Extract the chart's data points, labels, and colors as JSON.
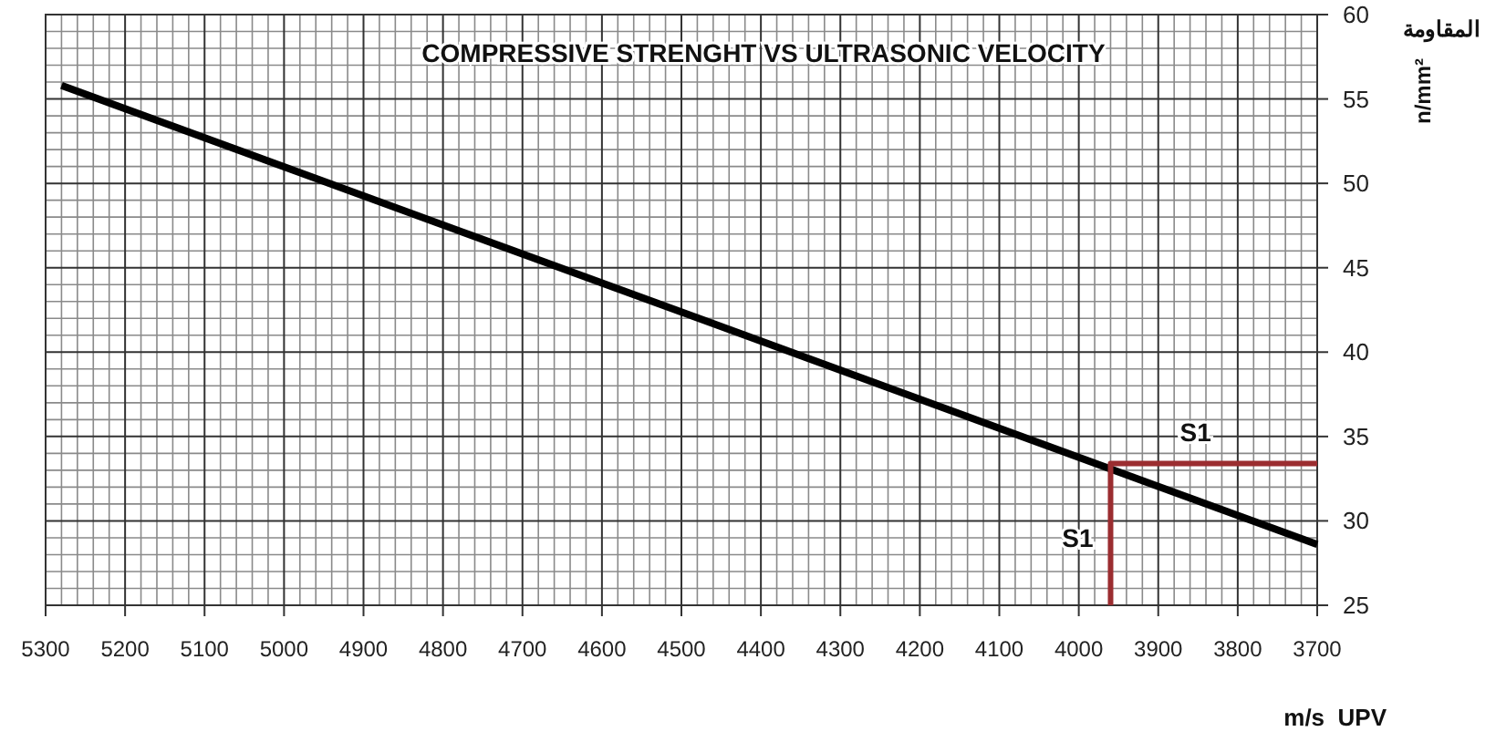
{
  "chart_data": {
    "type": "line",
    "title": "COMPRESSIVE STRENGHT VS  ULTRASONIC VELOCITY",
    "xlabel": "m/s  UPV",
    "ylabel": "n/mm²",
    "xlim": [
      5300,
      3700
    ],
    "xticks": [
      5300,
      5200,
      5100,
      5000,
      4900,
      4800,
      4700,
      4600,
      4500,
      4400,
      4300,
      4200,
      4100,
      4000,
      3900,
      3800,
      3700
    ],
    "ylim": [
      25,
      60
    ],
    "yticks": [
      25,
      30,
      35,
      40,
      45,
      50,
      55,
      60
    ],
    "grid": true,
    "marker": "none",
    "line_style": "solid",
    "series": [
      {
        "color": "#000000",
        "x": [
          5280,
          3700
        ],
        "values": [
          55.8,
          28.6
        ]
      },
      {
        "color": "#9b2d30",
        "x": [
          3960,
          3960,
          3700
        ],
        "values": [
          25,
          33.4,
          33.4
        ]
      }
    ],
    "annotations": [
      "المقاومة",
      "S1",
      "S1"
    ]
  }
}
